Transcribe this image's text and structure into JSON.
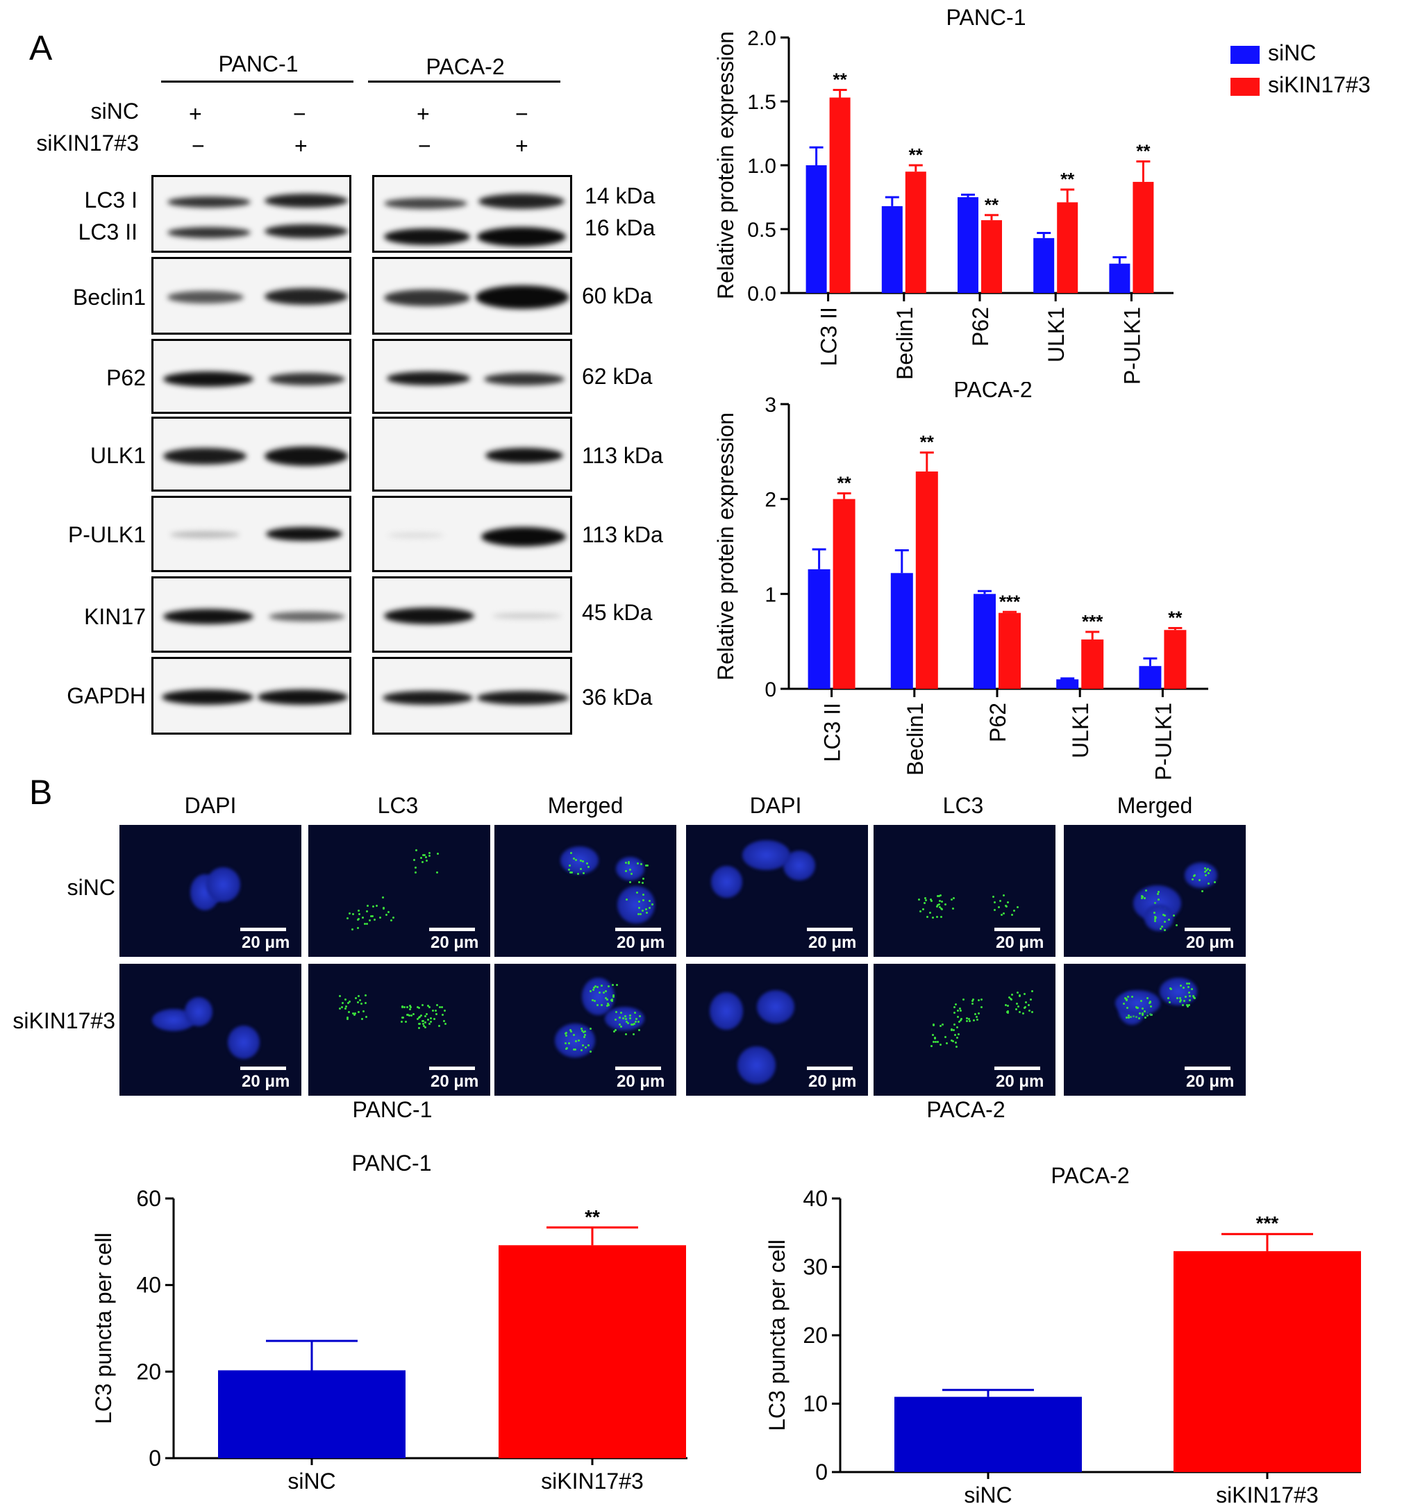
{
  "panel_a": {
    "letter": "A",
    "groups": [
      "PANC-1",
      "PACA-2"
    ],
    "conditions": [
      {
        "name": "siNC",
        "marks": [
          "+",
          "−",
          "+",
          "−"
        ]
      },
      {
        "name": "siKIN17#3",
        "marks": [
          "−",
          "+",
          "−",
          "+"
        ]
      }
    ],
    "blots": [
      {
        "labels": [
          "LC3 I",
          "LC3 II"
        ],
        "kda": [
          "14 kDa",
          "16 kDa"
        ]
      },
      {
        "labels": [
          "Beclin1"
        ],
        "kda": [
          "60 kDa"
        ]
      },
      {
        "labels": [
          "P62"
        ],
        "kda": [
          "62 kDa"
        ]
      },
      {
        "labels": [
          "ULK1"
        ],
        "kda": [
          "113 kDa"
        ]
      },
      {
        "labels": [
          "P-ULK1"
        ],
        "kda": [
          "113 kDa"
        ]
      },
      {
        "labels": [
          "KIN17"
        ],
        "kda": [
          "45 kDa"
        ]
      },
      {
        "labels": [
          "GAPDH"
        ],
        "kda": [
          "36 kDa"
        ]
      }
    ]
  },
  "panel_b": {
    "letter": "B",
    "column_heads": [
      "DAPI",
      "LC3",
      "Merged",
      "DAPI",
      "LC3",
      "Merged"
    ],
    "row_labels": [
      "siNC",
      "siKIN17#3"
    ],
    "scale_bar": "20 μm",
    "group_labels": [
      "PANC-1",
      "PACA-2"
    ]
  },
  "legend": {
    "items": [
      {
        "name": "siNC",
        "color": "#1010ff"
      },
      {
        "name": "siKIN17#3",
        "color": "#ff1010"
      }
    ]
  },
  "colors": {
    "sinc_bar": "#1010ff",
    "sikin_bar": "#ff1010",
    "sinc_bar_dark": "#0000cc",
    "sikin_bar_dark": "#ff0000"
  },
  "chart_data": [
    {
      "type": "bar",
      "title": "PANC-1",
      "ylabel": "Relative protein expression",
      "ylim": [
        0,
        2.0
      ],
      "yticks": [
        "0.0",
        "0.5",
        "1.0",
        "1.5",
        "2.0"
      ],
      "categories": [
        "LC3 II",
        "Beclin1",
        "P62",
        "ULK1",
        "P-ULK1"
      ],
      "series": [
        {
          "name": "siNC",
          "values": [
            1.0,
            0.68,
            0.75,
            0.43,
            0.23
          ],
          "errors": [
            0.14,
            0.07,
            0.02,
            0.04,
            0.05
          ]
        },
        {
          "name": "siKIN17#3",
          "values": [
            1.53,
            0.95,
            0.57,
            0.71,
            0.87
          ],
          "errors": [
            0.06,
            0.05,
            0.04,
            0.1,
            0.16
          ]
        }
      ],
      "significance": [
        "**",
        "**",
        "**",
        "**",
        "**"
      ]
    },
    {
      "type": "bar",
      "title": "PACA-2",
      "ylabel": "Relative protein expression",
      "ylim": [
        0,
        3
      ],
      "yticks": [
        "0",
        "1",
        "2",
        "3"
      ],
      "categories": [
        "LC3 II",
        "Beclin1",
        "P62",
        "ULK1",
        "P-ULK1"
      ],
      "series": [
        {
          "name": "siNC",
          "values": [
            1.26,
            1.22,
            1.0,
            0.1,
            0.24
          ],
          "errors": [
            0.21,
            0.24,
            0.03,
            0.01,
            0.08
          ]
        },
        {
          "name": "siKIN17#3",
          "values": [
            2.0,
            2.29,
            0.8,
            0.52,
            0.62
          ],
          "errors": [
            0.06,
            0.2,
            0.01,
            0.08,
            0.02
          ]
        }
      ],
      "significance": [
        "**",
        "**",
        "***",
        "***",
        "**"
      ]
    },
    {
      "type": "bar",
      "title": "PANC-1",
      "ylabel": "LC3 puncta per cell",
      "ylim": [
        0,
        60
      ],
      "yticks": [
        "0",
        "20",
        "40",
        "60"
      ],
      "categories": [
        "siNC",
        "siKIN17#3"
      ],
      "values": [
        20.3,
        49.2
      ],
      "errors": [
        6.8,
        4.1
      ],
      "significance": [
        "",
        "**"
      ]
    },
    {
      "type": "bar",
      "title": "PACA-2",
      "ylabel": "LC3 puncta per cell",
      "ylim": [
        0,
        40
      ],
      "yticks": [
        "0",
        "10",
        "20",
        "30",
        "40"
      ],
      "categories": [
        "siNC",
        "siKIN17#3"
      ],
      "values": [
        11.0,
        32.3
      ],
      "errors": [
        1.0,
        2.5
      ],
      "significance": [
        "",
        "***"
      ]
    }
  ]
}
